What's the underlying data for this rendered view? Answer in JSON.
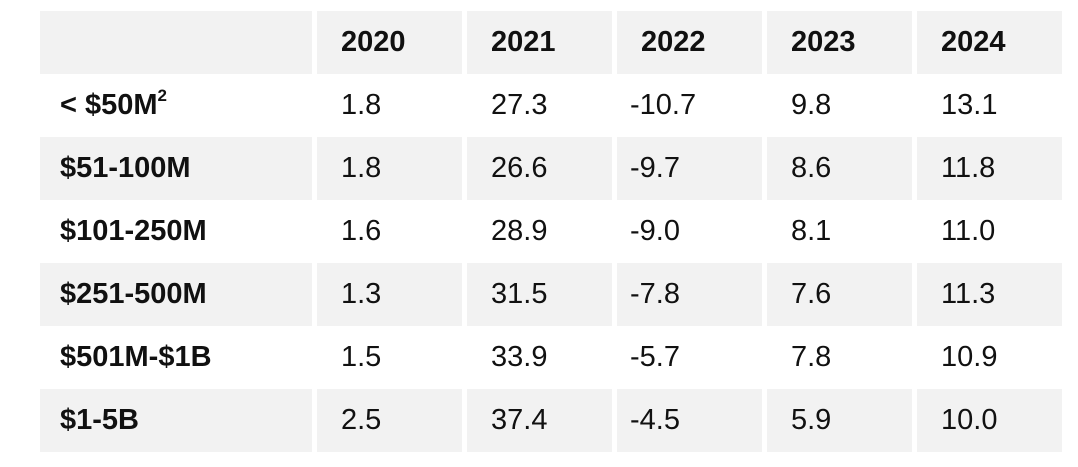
{
  "colors": {
    "stripe": "#f2f2f2",
    "background": "#ffffff",
    "text": "#111111"
  },
  "table": {
    "columns": [
      "2020",
      "2021",
      "2022",
      "2023",
      "2024"
    ],
    "rows": [
      {
        "label": "< $50M",
        "label_superscript": "2",
        "values": [
          "1.8",
          "27.3",
          "-10.7",
          "9.8",
          "13.1"
        ]
      },
      {
        "label": "$51-100M",
        "values": [
          "1.8",
          "26.6",
          "-9.7",
          "8.6",
          "11.8"
        ]
      },
      {
        "label": "$101-250M",
        "values": [
          "1.6",
          "28.9",
          "-9.0",
          "8.1",
          "11.0"
        ]
      },
      {
        "label": "$251-500M",
        "values": [
          "1.3",
          "31.5",
          "-7.8",
          "7.6",
          "11.3"
        ]
      },
      {
        "label": "$501M-$1B",
        "values": [
          "1.5",
          "33.9",
          "-5.7",
          "7.8",
          "10.9"
        ]
      },
      {
        "label": "$1-5B",
        "values": [
          "2.5",
          "37.4",
          "-4.5",
          "5.9",
          "10.0"
        ]
      }
    ]
  },
  "chart_data": {
    "type": "table",
    "title": "",
    "categories": [
      "2020",
      "2021",
      "2022",
      "2023",
      "2024"
    ],
    "row_header_label": "",
    "series": [
      {
        "name": "< $50M2",
        "values": [
          1.8,
          27.3,
          -10.7,
          9.8,
          13.1
        ]
      },
      {
        "name": "$51-100M",
        "values": [
          1.8,
          26.6,
          -9.7,
          8.6,
          11.8
        ]
      },
      {
        "name": "$101-250M",
        "values": [
          1.6,
          28.9,
          -9.0,
          8.1,
          11.0
        ]
      },
      {
        "name": "$251-500M",
        "values": [
          1.3,
          31.5,
          -7.8,
          7.6,
          11.3
        ]
      },
      {
        "name": "$501M-$1B",
        "values": [
          1.5,
          33.9,
          -5.7,
          7.8,
          10.9
        ]
      },
      {
        "name": "$1-5B",
        "values": [
          2.5,
          37.4,
          -4.5,
          5.9,
          10.0
        ]
      }
    ],
    "layout": {
      "stripe_rows": true,
      "grid": false,
      "legend": false
    }
  }
}
